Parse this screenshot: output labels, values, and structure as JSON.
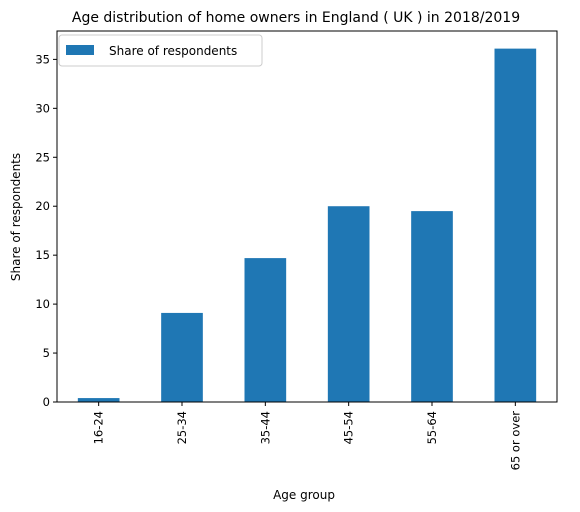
{
  "chart_data": {
    "type": "bar",
    "title": "Age distribution of home owners in England ( UK ) in 2018/2019",
    "xlabel": "Age group",
    "ylabel": "Share of respondents",
    "categories": [
      "16-24",
      "25-34",
      "35-44",
      "45-54",
      "55-64",
      "65 or over"
    ],
    "series": [
      {
        "name": "Share of respondents",
        "values": [
          0.4,
          9.1,
          14.7,
          20.0,
          19.5,
          36.1
        ],
        "color": "#1f77b4"
      }
    ],
    "ylim": [
      0,
      37.9
    ],
    "yticks": [
      0,
      5,
      10,
      15,
      20,
      25,
      30,
      35
    ],
    "grid": false,
    "legend": "top-left"
  }
}
